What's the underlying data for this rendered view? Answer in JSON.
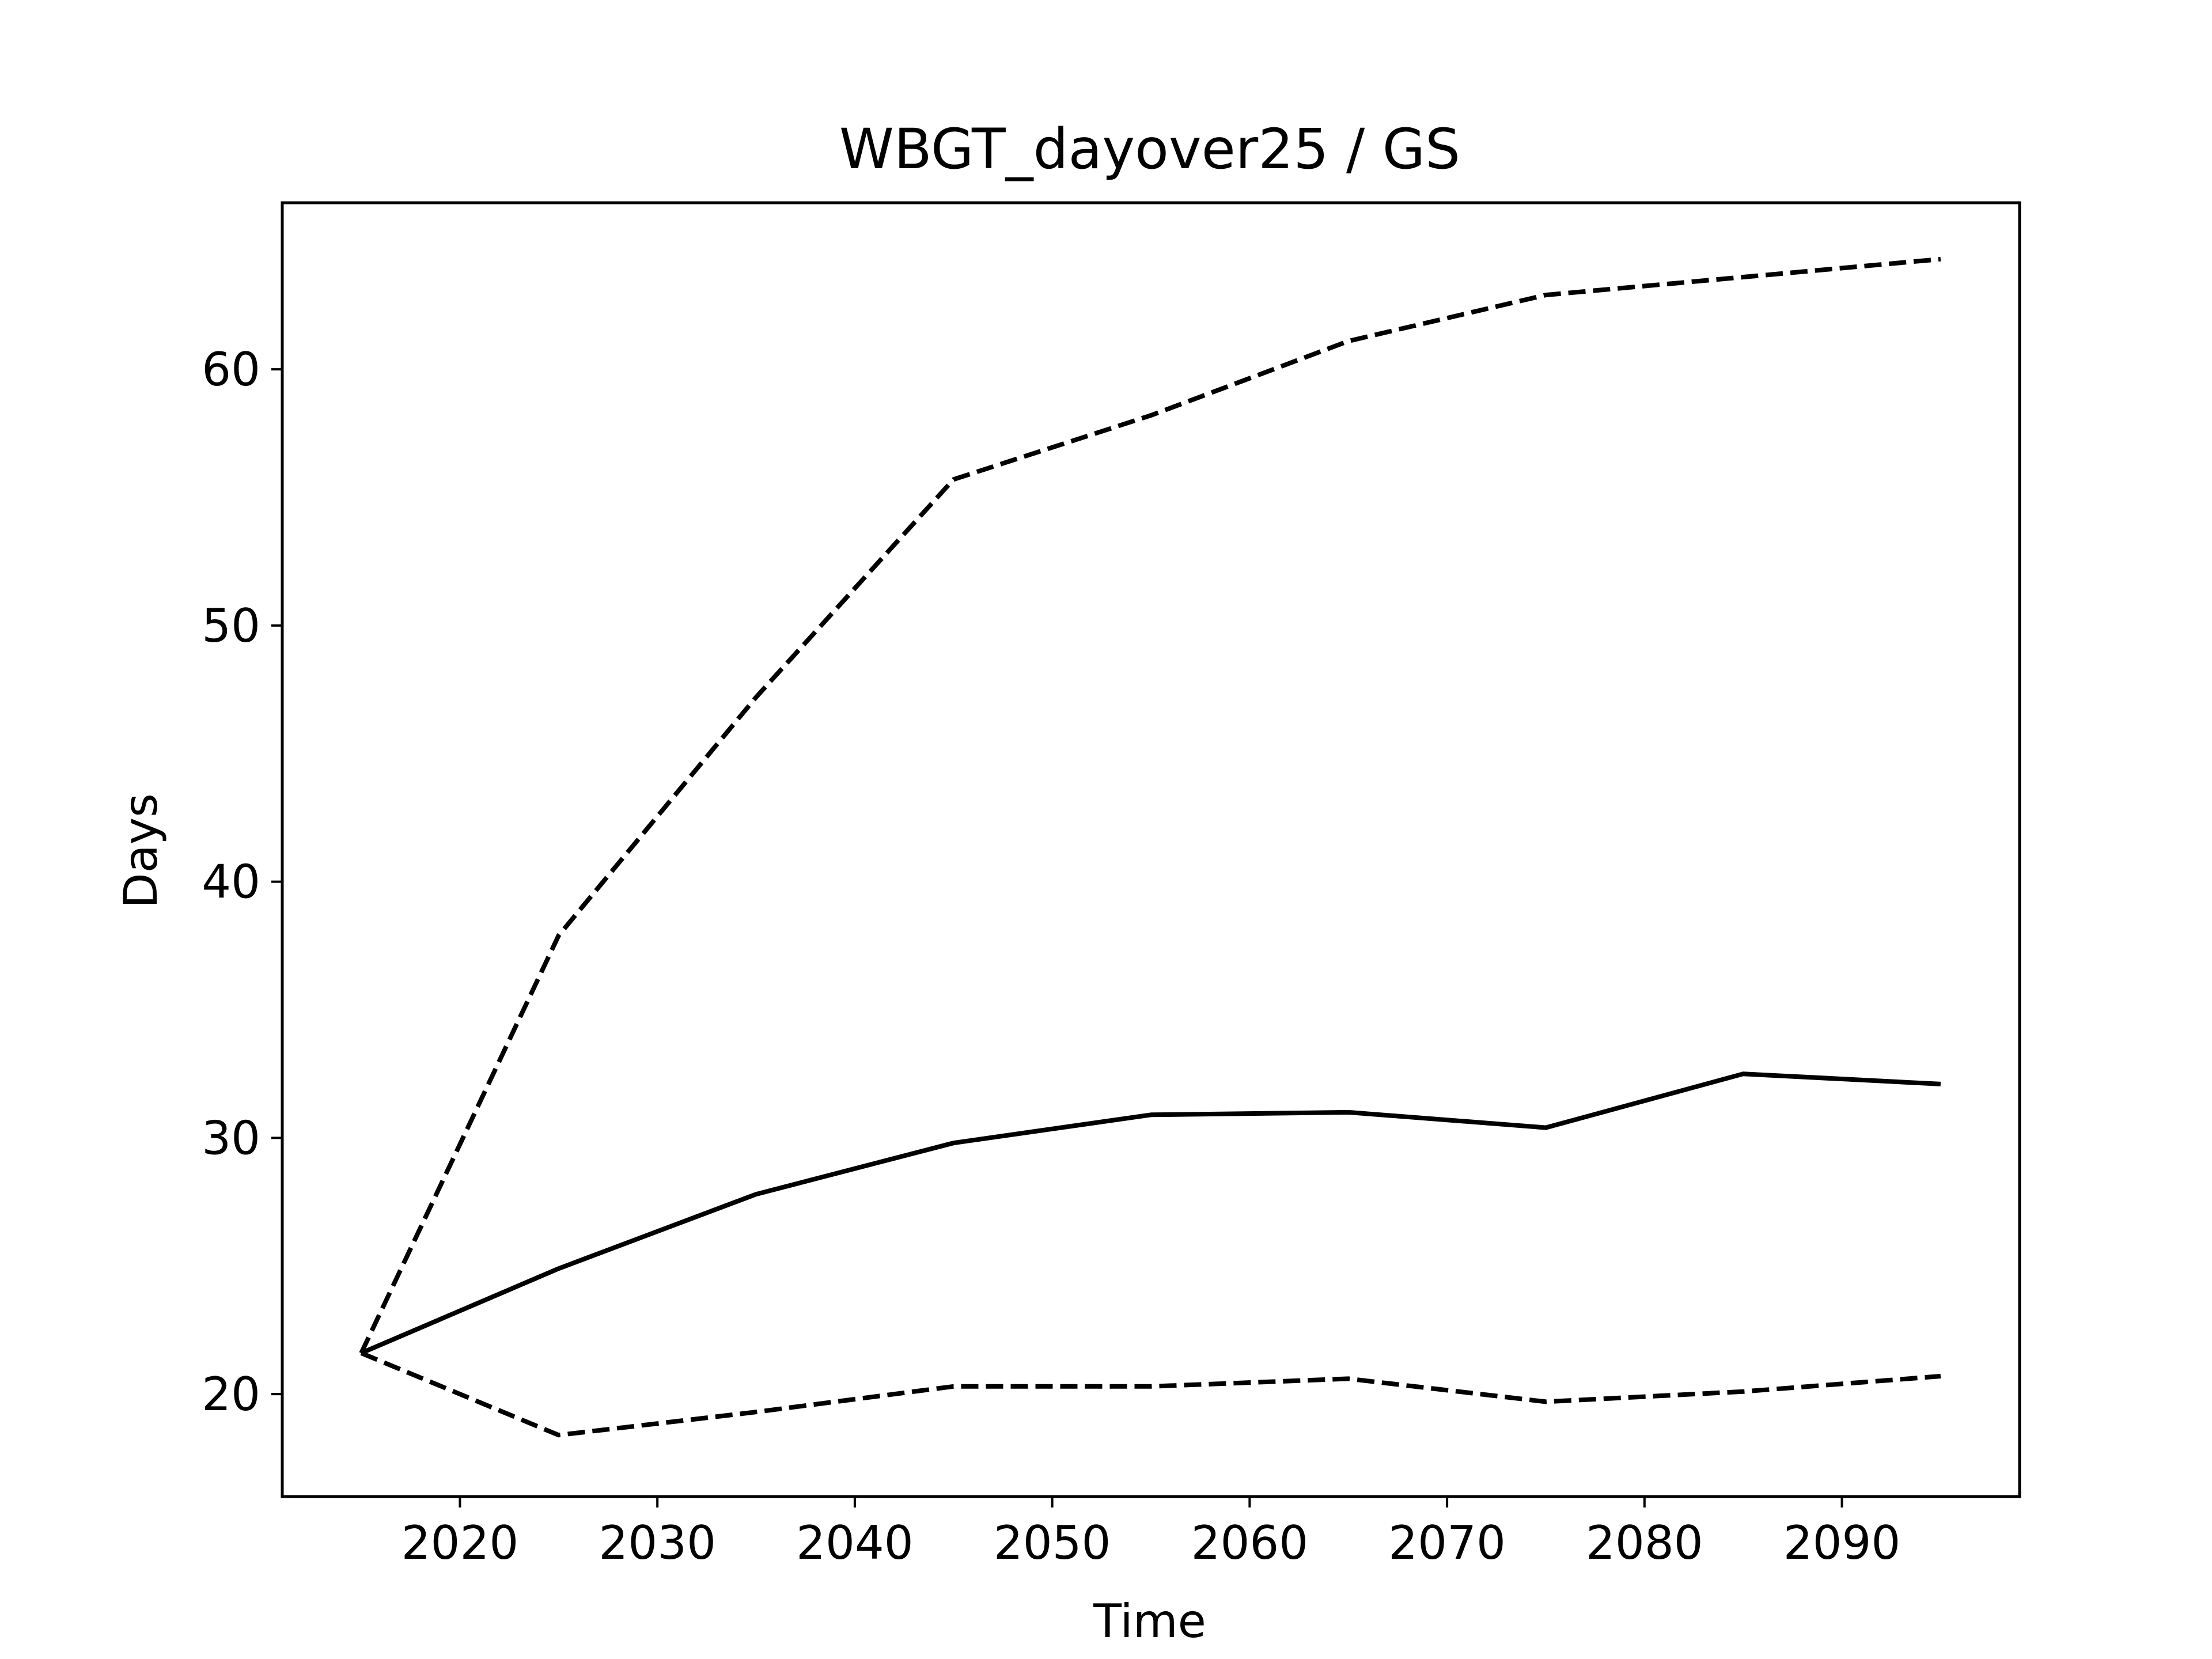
{
  "chart_data": {
    "type": "line",
    "title": "WBGT_dayover25 / GS",
    "xlabel": "Time",
    "ylabel": "Days",
    "xlim": [
      2011,
      2099
    ],
    "ylim": [
      16,
      66.5
    ],
    "x_ticks": [
      2020,
      2030,
      2040,
      2050,
      2060,
      2070,
      2080,
      2090
    ],
    "y_ticks": [
      20,
      30,
      40,
      50,
      60
    ],
    "x": [
      2015,
      2025,
      2035,
      2045,
      2055,
      2065,
      2075,
      2085,
      2095
    ],
    "grid": false,
    "legend": "none",
    "series": [
      {
        "style": "solid",
        "color": "#000000",
        "values": [
          21.6,
          24.9,
          27.8,
          29.8,
          30.9,
          31.0,
          30.4,
          32.5,
          32.1
        ]
      },
      {
        "style": "dashed",
        "color": "#000000",
        "values": [
          21.6,
          37.9,
          47.2,
          55.7,
          58.2,
          61.1,
          62.9,
          63.6,
          64.3
        ]
      },
      {
        "style": "dashed",
        "color": "#000000",
        "values": [
          21.6,
          18.4,
          19.3,
          20.3,
          20.3,
          20.6,
          19.7,
          20.1,
          20.7
        ]
      }
    ]
  }
}
